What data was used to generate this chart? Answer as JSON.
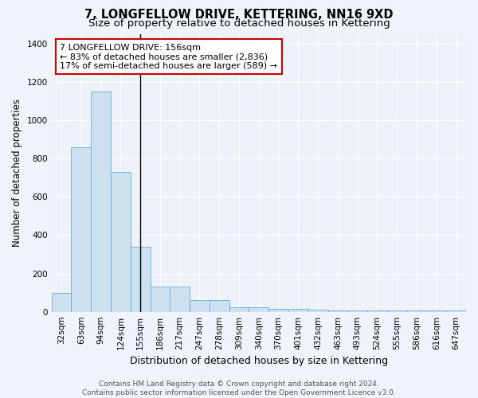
{
  "title": "7, LONGFELLOW DRIVE, KETTERING, NN16 9XD",
  "subtitle": "Size of property relative to detached houses in Kettering",
  "xlabel": "Distribution of detached houses by size in Kettering",
  "ylabel": "Number of detached properties",
  "bin_labels": [
    "32sqm",
    "63sqm",
    "94sqm",
    "124sqm",
    "155sqm",
    "186sqm",
    "217sqm",
    "247sqm",
    "278sqm",
    "309sqm",
    "340sqm",
    "370sqm",
    "401sqm",
    "432sqm",
    "463sqm",
    "493sqm",
    "524sqm",
    "555sqm",
    "586sqm",
    "616sqm",
    "647sqm"
  ],
  "bar_heights": [
    100,
    860,
    1150,
    730,
    340,
    130,
    130,
    60,
    60,
    25,
    25,
    15,
    15,
    10,
    5,
    5,
    5,
    5,
    5,
    5,
    5
  ],
  "bar_color": "#cce0f0",
  "bar_edge_color": "#6aaed6",
  "property_line_index": 4,
  "property_line_color": "#000000",
  "annotation_line1": "7 LONGFELLOW DRIVE: 156sqm",
  "annotation_line2": "← 83% of detached houses are smaller (2,836)",
  "annotation_line3": "17% of semi-detached houses are larger (589) →",
  "annotation_box_color": "#ffffff",
  "annotation_box_edge": "#cc0000",
  "ylim": [
    0,
    1450
  ],
  "yticks": [
    0,
    200,
    400,
    600,
    800,
    1000,
    1200,
    1400
  ],
  "background_color": "#edf2f9",
  "grid_color": "#ffffff",
  "footer_text": "Contains HM Land Registry data © Crown copyright and database right 2024.\nContains public sector information licensed under the Open Government Licence v3.0.",
  "title_fontsize": 10.5,
  "subtitle_fontsize": 9.5,
  "xlabel_fontsize": 9,
  "ylabel_fontsize": 8.5,
  "tick_fontsize": 7.5,
  "footer_fontsize": 6.5,
  "annotation_fontsize": 8
}
